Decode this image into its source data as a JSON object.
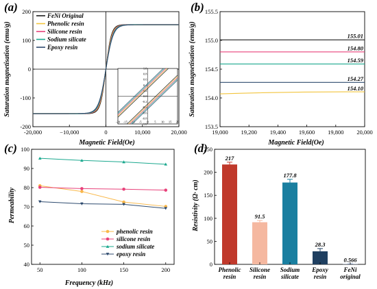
{
  "chart_data": [
    {
      "panel": "(a)",
      "type": "line",
      "xlabel": "Magnetic Field(Oe)",
      "ylabel": "Saturation magnetisation (emu/g)",
      "xlim": [
        -20000,
        20000
      ],
      "ylim": [
        -200,
        200
      ],
      "xticks": [
        -20000,
        -10000,
        0,
        10000,
        20000
      ],
      "xtick_labels": [
        "-20,000",
        "−10,000",
        "0",
        "10,000",
        "20,000"
      ],
      "yticks": [
        -200,
        -100,
        0,
        100,
        200
      ],
      "legend_position": "top-left",
      "series": [
        {
          "name": "FeNi Original",
          "color": "#1a1a1a",
          "ms": 155.01
        },
        {
          "name": "Phenolic resin",
          "color": "#f2c43c",
          "ms": 154.1
        },
        {
          "name": "Silicone resin",
          "color": "#e8417a",
          "ms": 154.8
        },
        {
          "name": "Sodium silicate",
          "color": "#1aa88e",
          "ms": 154.59
        },
        {
          "name": "Epoxy resin",
          "color": "#2d4a6e",
          "ms": 154.27
        }
      ],
      "inset": {
        "xticks": [
          "-20",
          "-15",
          "-10",
          "-5",
          "0",
          "5",
          "10",
          "15",
          "20"
        ],
        "yticks": [
          "1.0",
          "0.8",
          "0.6",
          "0.4",
          "0.2",
          "0.0",
          "-0.2",
          "-0.4",
          "-0.6",
          "-0.8",
          "-1.0"
        ]
      }
    },
    {
      "panel": "(b)",
      "type": "line",
      "xlabel": "Magnetic Field(Oe)",
      "ylabel": "Saturation magnetisation (emu/g)",
      "xlim": [
        19000,
        20000
      ],
      "ylim": [
        153.5,
        155.5
      ],
      "xticks": [
        "19,000",
        "19,200",
        "19,400",
        "19,600",
        "19,800",
        "20,000"
      ],
      "yticks": [
        "153.5",
        "154.0",
        "154.5",
        "155.0",
        "155.5"
      ],
      "series": [
        {
          "color": "#1a1a1a",
          "value": 155.01,
          "label": "155.01"
        },
        {
          "color": "#e8417a",
          "value": 154.8,
          "label": "154.80"
        },
        {
          "color": "#1aa88e",
          "value": 154.59,
          "label": "154.59"
        },
        {
          "color": "#2d4a6e",
          "value": 154.27,
          "label": "154.27"
        },
        {
          "color": "#f2c43c",
          "value": 154.1,
          "label": "154.10"
        }
      ]
    },
    {
      "panel": "(c)",
      "type": "line",
      "xlabel": "Frequency (kHz)",
      "ylabel": "Permeability",
      "x": [
        50,
        100,
        150,
        200
      ],
      "xlim": [
        40,
        210
      ],
      "ylim": [
        40,
        100
      ],
      "yticks": [
        40,
        50,
        60,
        70,
        80,
        90,
        100
      ],
      "xticks": [
        50,
        100,
        150,
        200
      ],
      "legend_position": "bottom-right",
      "series": [
        {
          "name": "phenolic resin",
          "color": "#f9b84a",
          "marker": "circle",
          "values": [
            81.0,
            78.0,
            72.5,
            70.2
          ]
        },
        {
          "name": "silicone resin",
          "color": "#e8417a",
          "marker": "circle",
          "values": [
            80.2,
            79.5,
            79.2,
            78.7
          ]
        },
        {
          "name": "sodium silicate",
          "color": "#1aa88e",
          "marker": "triangle-up",
          "values": [
            95.3,
            94.2,
            93.4,
            92.2
          ]
        },
        {
          "name": "epoxy resin",
          "color": "#2d4a6e",
          "marker": "triangle-down",
          "values": [
            72.7,
            71.6,
            71.3,
            69.2
          ]
        }
      ]
    },
    {
      "panel": "(d)",
      "type": "bar",
      "ylabel": "Resistivity (Ω· cm)",
      "ylim": [
        0,
        250
      ],
      "yticks": [
        0,
        50,
        100,
        150,
        200,
        250
      ],
      "categories": [
        [
          "Phenolic",
          "resin"
        ],
        [
          "Silicone",
          "resin"
        ],
        [
          "Sodium",
          "silicate"
        ],
        [
          "Epoxy",
          "resin"
        ],
        [
          "FeNi",
          "original"
        ]
      ],
      "values": [
        217,
        91.5,
        177.8,
        28.3,
        0.566
      ],
      "labels": [
        "217",
        "91.5",
        "177.8",
        "28.3",
        "0.566"
      ],
      "errors": [
        5,
        4,
        7,
        6,
        0.5
      ],
      "colors": [
        "#c0392b",
        "#f5b8a0",
        "#1a7fa0",
        "#1f3f60",
        "#8aa0c0"
      ]
    }
  ]
}
